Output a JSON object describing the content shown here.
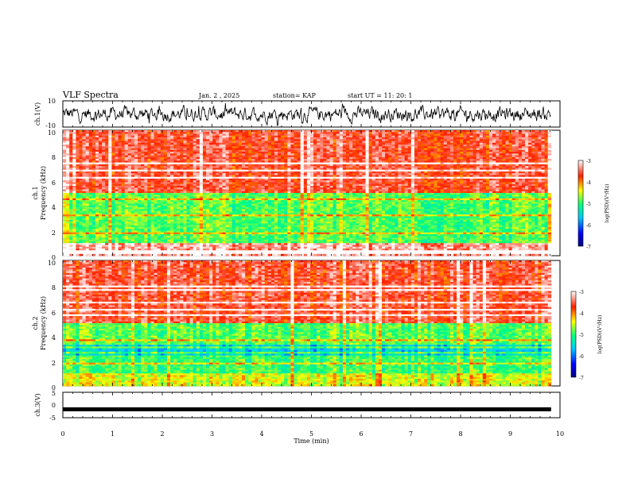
{
  "header": {
    "title": "VLF Spectra",
    "date": "Jan. 2 , 2025",
    "station": "station= KAP",
    "start": "start UT =  11: 20: 1"
  },
  "chart_data": [
    {
      "type": "line",
      "name": "ch1-waveform",
      "ylabel": "ch.1(V)",
      "ylim": [
        -10,
        10
      ],
      "yticks": [
        "10",
        "-10"
      ],
      "description_value_range": [
        -6,
        6
      ]
    },
    {
      "type": "heatmap",
      "name": "ch1-spectrogram",
      "ylabel": "ch.1\nFrequency (kHz)",
      "ylabel_line1": "ch.1",
      "ylabel_line2": "Frequency (kHz)",
      "ylim": [
        0,
        10
      ],
      "yticks": [
        "0",
        "2",
        "4",
        "6",
        "8",
        "10"
      ],
      "color_bands_khz": [
        {
          "from": 0,
          "to": 1,
          "log_psd": -3.3
        },
        {
          "from": 1,
          "to": 5,
          "log_psd": -4.9
        },
        {
          "from": 5,
          "to": 10,
          "log_psd": -3.6
        }
      ]
    },
    {
      "type": "heatmap",
      "name": "ch2-spectrogram",
      "ylabel_line1": "ch.2",
      "ylabel_line2": "Frequency (kHz)",
      "ylim": [
        0,
        10
      ],
      "yticks": [
        "0",
        "2",
        "4",
        "6",
        "8",
        "10"
      ],
      "color_bands_khz": [
        {
          "from": 0,
          "to": 1,
          "log_psd": -4.5
        },
        {
          "from": 1,
          "to": 2.5,
          "log_psd": -5.0
        },
        {
          "from": 2.5,
          "to": 3.3,
          "log_psd": -5.6
        },
        {
          "from": 3.3,
          "to": 5,
          "log_psd": -4.9
        },
        {
          "from": 5,
          "to": 10,
          "log_psd": -3.6
        }
      ]
    },
    {
      "type": "line",
      "name": "ch3-waveform",
      "ylabel": "ch.3(V)",
      "ylim": [
        -5,
        5
      ],
      "yticks": [
        "5",
        "0",
        "-5"
      ],
      "level": -1.7
    }
  ],
  "xaxis": {
    "label": "Time (min)",
    "xlim": [
      0,
      10
    ],
    "ticks": [
      "0",
      "1",
      "2",
      "3",
      "4",
      "5",
      "6",
      "7",
      "8",
      "9",
      "10"
    ],
    "data_end": 9.82
  },
  "colorbar": {
    "label": "log(PSD)(V²/Hz)",
    "range": [
      -7,
      -3
    ],
    "ticks": [
      "-3",
      "-4",
      "-5",
      "-6",
      "-7"
    ],
    "colors": [
      "#000080",
      "#0000ff",
      "#00c8ff",
      "#00ff80",
      "#ffff00",
      "#ff2000",
      "#ffffff"
    ]
  }
}
